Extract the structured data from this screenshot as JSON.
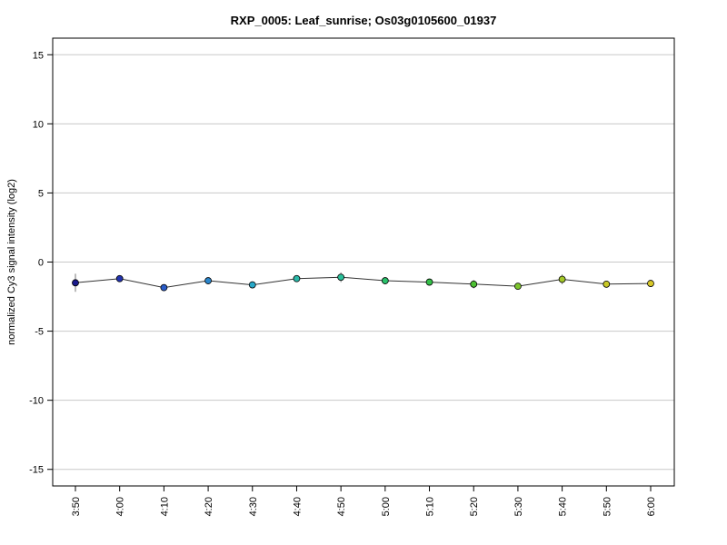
{
  "chart_data": {
    "type": "line",
    "title": "RXP_0005: Leaf_sunrise; Os03g0105600_01937",
    "xlabel": "",
    "ylabel": "normalized Cy3 signal intensity (log2)",
    "ylim": [
      -16.2,
      16.2
    ],
    "yticks": [
      15,
      10,
      5,
      0,
      -5,
      -10,
      -15
    ],
    "ytick_labels": [
      "15",
      "10",
      "5",
      "0",
      "-5",
      "-10",
      "-15"
    ],
    "grid": "horizontal",
    "categories": [
      "3:50",
      "4:00",
      "4:10",
      "4:20",
      "4:30",
      "4:40",
      "4:50",
      "5:00",
      "5:10",
      "5:20",
      "5:30",
      "5:40",
      "5:50",
      "6:00"
    ],
    "series": [
      {
        "values": [
          -1.5,
          -1.2,
          -1.85,
          -1.35,
          -1.65,
          -1.2,
          -1.1,
          -1.35,
          -1.45,
          -1.6,
          -1.75,
          -1.25,
          -1.6,
          -1.55
        ],
        "error": [
          0.65,
          0.12,
          0.1,
          0.15,
          0.25,
          0.15,
          0.35,
          0.15,
          0.15,
          0.3,
          0.12,
          0.35,
          0.25,
          0.12
        ],
        "colors": [
          "#1a1a8c",
          "#2233b0",
          "#2a5cc8",
          "#2a86cc",
          "#28a8c8",
          "#2ab8a8",
          "#2ac09a",
          "#2ac06a",
          "#34c048",
          "#4cc032",
          "#7cc42c",
          "#a4c828",
          "#c8c826",
          "#d8c828"
        ]
      }
    ],
    "line_color": "#333333",
    "grid_color": "#c8c8c8"
  }
}
